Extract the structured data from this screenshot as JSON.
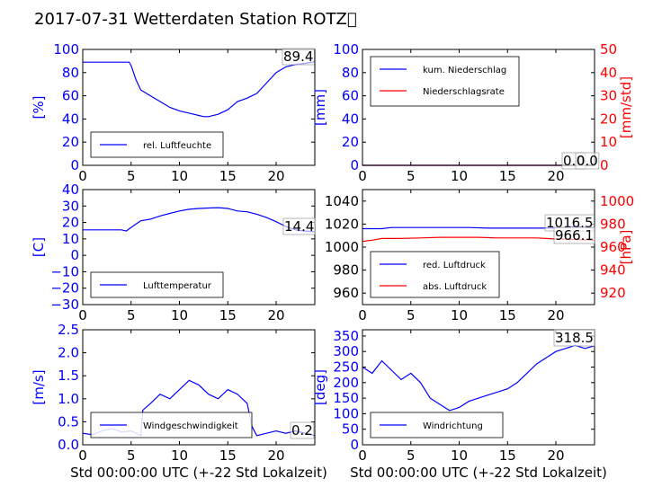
{
  "title": "2017-07-31 Wetterdaten Station ROTZ\u0000",
  "colors": {
    "primary": "#0000ff",
    "secondary": "#ff0000",
    "axis": "#000000"
  },
  "chart_data": [
    {
      "type": "line",
      "id": "humidity",
      "ylabel": "[%]",
      "xlim": [
        0,
        24
      ],
      "ylim": [
        0,
        100
      ],
      "xticks": [
        "0",
        "5",
        "10",
        "15",
        "20"
      ],
      "yticks": [
        "0",
        "20",
        "40",
        "60",
        "80",
        "100"
      ],
      "legend": [
        "rel. Luftfeuchte"
      ],
      "annotation": "89.4",
      "series": [
        {
          "name": "rel. Luftfeuchte",
          "x": [
            0,
            1,
            2,
            3,
            4,
            4.8,
            5,
            5.5,
            6,
            7,
            8,
            9,
            10,
            11,
            12,
            12.5,
            13,
            14,
            15,
            16,
            17,
            18,
            19,
            20,
            21,
            22,
            23,
            24
          ],
          "y": [
            89,
            89,
            89,
            89,
            89,
            89,
            86,
            74,
            65,
            60,
            55,
            50,
            47,
            45,
            43,
            42,
            42,
            44,
            48,
            55,
            58,
            62,
            71,
            80,
            85,
            87,
            88,
            89.4
          ]
        }
      ]
    },
    {
      "type": "line",
      "id": "precipitation",
      "ylabel": "[mm]",
      "y2label": "[mm/std]",
      "xlim": [
        0,
        24
      ],
      "ylim": [
        0,
        100
      ],
      "y2lim": [
        0,
        50
      ],
      "xticks": [
        "0",
        "5",
        "10",
        "15",
        "20"
      ],
      "yticks": [
        "0",
        "20",
        "40",
        "60",
        "80",
        "100"
      ],
      "y2ticks": [
        "0",
        "10",
        "20",
        "30",
        "40",
        "50"
      ],
      "legend": [
        "kum. Niederschlag",
        "Niederschlagsrate"
      ],
      "annotations": [
        "0.0",
        "0.0"
      ],
      "series": [
        {
          "name": "kum. Niederschlag",
          "x": [
            0,
            24
          ],
          "y": [
            0,
            0
          ]
        },
        {
          "name": "Niederschlagsrate",
          "x": [
            0,
            24
          ],
          "y": [
            0,
            0
          ]
        }
      ]
    },
    {
      "type": "line",
      "id": "temperature",
      "ylabel": "[C]",
      "xlim": [
        0,
        24
      ],
      "ylim": [
        -30,
        40
      ],
      "xticks": [
        "0",
        "5",
        "10",
        "15",
        "20"
      ],
      "yticks": [
        "−30",
        "−20",
        "−10",
        "0",
        "10",
        "20",
        "30",
        "40"
      ],
      "legend": [
        "Lufttemperatur"
      ],
      "annotation": "14.4",
      "series": [
        {
          "name": "Lufttemperatur",
          "x": [
            0,
            1,
            2,
            3,
            4,
            4.5,
            5,
            5.5,
            6,
            7,
            8,
            9,
            10,
            11,
            12,
            13,
            14,
            15,
            16,
            17,
            18,
            19,
            20,
            21,
            22,
            23,
            24
          ],
          "y": [
            15.5,
            15.5,
            15.5,
            15.5,
            15.5,
            14.8,
            17,
            19,
            21,
            22,
            24,
            25.5,
            27,
            28,
            28.5,
            28.8,
            29,
            28.5,
            27,
            26.5,
            25,
            23,
            20.5,
            17.5,
            15.5,
            14.8,
            14.4
          ]
        }
      ]
    },
    {
      "type": "line",
      "id": "pressure",
      "ylabel": "",
      "y2label": "[hPa]",
      "xlim": [
        0,
        24
      ],
      "ylim": [
        950,
        1050
      ],
      "y2lim": [
        910,
        1010
      ],
      "xticks": [
        "0",
        "5",
        "10",
        "15",
        "20"
      ],
      "yticks": [
        "960",
        "980",
        "1000",
        "1020",
        "1040"
      ],
      "y2ticks": [
        "920",
        "940",
        "960",
        "980",
        "1000"
      ],
      "legend": [
        "red. Luftdruck",
        "abs. Luftdruck"
      ],
      "annotations": [
        "1016.5",
        "966.1"
      ],
      "series": [
        {
          "name": "red. Luftdruck",
          "x": [
            0,
            2,
            3,
            5,
            7,
            9,
            11,
            13,
            15,
            17,
            19,
            21,
            22,
            23,
            24
          ],
          "y": [
            1016,
            1016,
            1017,
            1017,
            1017,
            1017,
            1017,
            1016.5,
            1016.5,
            1016.5,
            1016.5,
            1017,
            1018,
            1017,
            1016.5
          ]
        },
        {
          "name": "abs. Luftdruck",
          "x": [
            0,
            1,
            2,
            4,
            6,
            8,
            10,
            12,
            14,
            16,
            18,
            19,
            20,
            21,
            22,
            24
          ],
          "y": [
            965,
            966,
            967.5,
            967.5,
            968,
            968.5,
            968.5,
            968.5,
            968,
            968,
            968,
            967.5,
            967,
            967,
            966.5,
            966.1
          ]
        }
      ]
    },
    {
      "type": "line",
      "id": "windspeed",
      "ylabel": "[m/s]",
      "xlabel": "Std 00:00:00 UTC (+-22 Std Lokalzeit)",
      "xlim": [
        0,
        24
      ],
      "ylim": [
        0,
        2.5
      ],
      "xticks": [
        "0",
        "5",
        "10",
        "15",
        "20"
      ],
      "yticks": [
        "0.0",
        "0.5",
        "1.0",
        "1.5",
        "2.0",
        "2.5"
      ],
      "legend": [
        "Windgeschwindigkeit"
      ],
      "annotation": "0.2",
      "series": [
        {
          "name": "Windgeschwindigkeit",
          "x": [
            0,
            1,
            2,
            3,
            4,
            5,
            6,
            6.2,
            7,
            8,
            9,
            10,
            11,
            12,
            13,
            14,
            15,
            16,
            17,
            17.5,
            18,
            19,
            20,
            21,
            22,
            23,
            24
          ],
          "y": [
            0.25,
            0.22,
            0.3,
            0.35,
            0.28,
            0.3,
            0.2,
            0.75,
            0.9,
            1.1,
            1.0,
            1.2,
            1.4,
            1.3,
            1.1,
            1.0,
            1.2,
            1.1,
            0.9,
            0.4,
            0.2,
            0.25,
            0.3,
            0.25,
            0.3,
            0.25,
            0.2
          ]
        }
      ]
    },
    {
      "type": "line",
      "id": "winddirection",
      "ylabel": "[deg]",
      "xlabel": "Std 00:00:00 UTC (+-22 Std Lokalzeit)",
      "xlim": [
        0,
        24
      ],
      "ylim": [
        0,
        370
      ],
      "xticks": [
        "0",
        "5",
        "10",
        "15",
        "20"
      ],
      "yticks": [
        "0",
        "50",
        "100",
        "150",
        "200",
        "250",
        "300",
        "350"
      ],
      "legend": [
        "Windrichtung"
      ],
      "annotation": "318.5",
      "series": [
        {
          "name": "Windrichtung",
          "x": [
            0,
            1,
            2,
            3,
            4,
            5,
            6,
            7,
            8,
            9,
            10,
            11,
            12,
            13,
            14,
            15,
            16,
            17,
            18,
            19,
            20,
            21,
            22,
            23,
            24
          ],
          "y": [
            250,
            230,
            270,
            240,
            210,
            230,
            200,
            150,
            130,
            110,
            120,
            140,
            150,
            160,
            170,
            180,
            200,
            230,
            260,
            280,
            300,
            310,
            320,
            310,
            318.5
          ]
        }
      ]
    }
  ]
}
